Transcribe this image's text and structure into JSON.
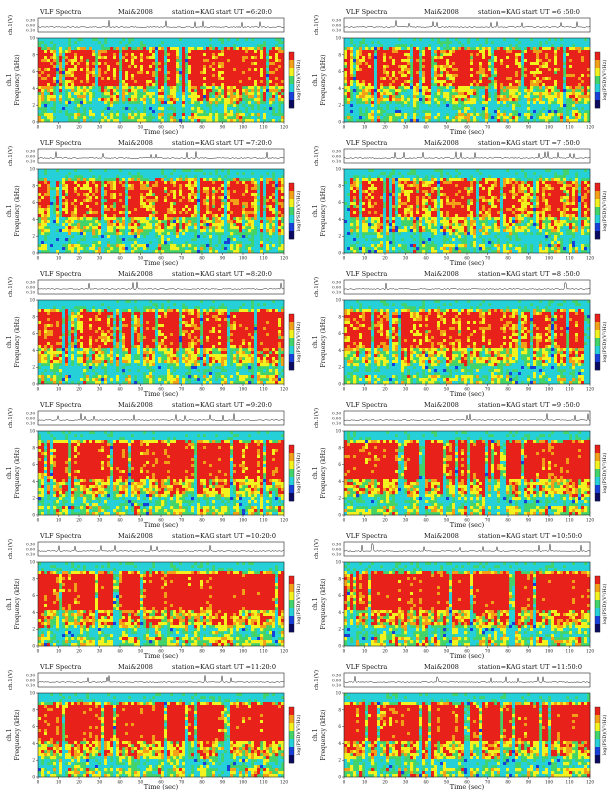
{
  "page": {
    "instrument": "VLF Spectra",
    "date": "Mai&2008",
    "station": "station=KAG",
    "start_prefix": "start  UT ="
  },
  "labels": {
    "top_ylabel": "ch.1(V)",
    "spec_ylabel_line1": "ch.1",
    "spec_ylabel_line2": "Frequency (kHz)",
    "xlabel": "Time (sec)",
    "colorbar_label": "log(PSD)(V²/Hz)"
  },
  "colors": {
    "grid_bg": "#1fd6b8",
    "cyan": "#25d0d8",
    "green": "#42d46a",
    "yellow": "#f2f21e",
    "orange": "#f2a018",
    "red": "#e8211b",
    "blue": "#1840d8",
    "navy": "#0a0a60"
  },
  "chart_data": [
    {
      "type": "heatmap",
      "start_ut": "6:20:0",
      "x_range": [
        0,
        120
      ],
      "top_ylim": [
        0.1,
        0.3
      ],
      "top_ticks": [
        "0.30",
        "0.00",
        "0.10"
      ],
      "freq_range_khz": [
        0,
        10
      ],
      "x_ticks": [
        0,
        10,
        20,
        30,
        40,
        50,
        60,
        70,
        80,
        90,
        100,
        110,
        120
      ],
      "y_ticks": [
        0,
        2,
        4,
        6,
        8,
        10
      ],
      "intensity": 0.45
    },
    {
      "type": "heatmap",
      "start_ut": "6 :50:0",
      "x_range": [
        0,
        120
      ],
      "top_ylim": [
        0.1,
        0.3
      ],
      "top_ticks": [
        "0.30",
        "0.00",
        "0.10"
      ],
      "freq_range_khz": [
        0,
        10
      ],
      "x_ticks": [
        0,
        10,
        20,
        30,
        40,
        50,
        60,
        70,
        80,
        90,
        100,
        110,
        120
      ],
      "y_ticks": [
        0,
        2,
        4,
        6,
        8,
        10
      ],
      "intensity": 0.42
    },
    {
      "type": "heatmap",
      "start_ut": "7:20:0",
      "x_range": [
        0,
        120
      ],
      "top_ylim": [
        0.1,
        0.3
      ],
      "top_ticks": [
        "0.30",
        "0.00",
        "0.10"
      ],
      "freq_range_khz": [
        0,
        10
      ],
      "x_ticks": [
        0,
        10,
        20,
        30,
        40,
        50,
        60,
        70,
        80,
        90,
        100,
        110,
        120
      ],
      "y_ticks": [
        0,
        2,
        4,
        6,
        8,
        10
      ],
      "intensity": 0.4
    },
    {
      "type": "heatmap",
      "start_ut": "7 :50:0",
      "x_range": [
        0,
        120
      ],
      "top_ylim": [
        0.1,
        0.3
      ],
      "top_ticks": [
        "0.30",
        "0.00",
        "0.10"
      ],
      "freq_range_khz": [
        0,
        10
      ],
      "x_ticks": [
        0,
        10,
        20,
        30,
        40,
        50,
        60,
        70,
        80,
        90,
        100,
        110,
        120
      ],
      "y_ticks": [
        0,
        2,
        4,
        6,
        8,
        10
      ],
      "intensity": 0.38
    },
    {
      "type": "heatmap",
      "start_ut": "8:20:0",
      "x_range": [
        0,
        120
      ],
      "top_ylim": [
        0.1,
        0.3
      ],
      "top_ticks": [
        "0.30",
        "0.00",
        "0.10"
      ],
      "freq_range_khz": [
        0,
        10
      ],
      "x_ticks": [
        0,
        10,
        20,
        30,
        40,
        50,
        60,
        70,
        80,
        90,
        100,
        110,
        120
      ],
      "y_ticks": [
        0,
        2,
        4,
        6,
        8,
        10
      ],
      "intensity": 0.45
    },
    {
      "type": "heatmap",
      "start_ut": "8 :50:0",
      "x_range": [
        0,
        120
      ],
      "top_ylim": [
        0.1,
        0.3
      ],
      "top_ticks": [
        "0.30",
        "0.00",
        "0.10"
      ],
      "freq_range_khz": [
        0,
        10
      ],
      "x_ticks": [
        0,
        10,
        20,
        30,
        40,
        50,
        60,
        70,
        80,
        90,
        100,
        110,
        120
      ],
      "y_ticks": [
        0,
        2,
        4,
        6,
        8,
        10
      ],
      "intensity": 0.46
    },
    {
      "type": "heatmap",
      "start_ut": "9:20:0",
      "x_range": [
        0,
        120
      ],
      "top_ylim": [
        0.1,
        0.3
      ],
      "top_ticks": [
        "0.30",
        "0.00",
        "0.10"
      ],
      "freq_range_khz": [
        0,
        10
      ],
      "x_ticks": [
        0,
        10,
        20,
        30,
        40,
        50,
        60,
        70,
        80,
        90,
        100,
        110,
        120
      ],
      "y_ticks": [
        0,
        2,
        4,
        6,
        8,
        10
      ],
      "intensity": 0.62
    },
    {
      "type": "heatmap",
      "start_ut": "9 :50:0",
      "x_range": [
        0,
        120
      ],
      "top_ylim": [
        0.1,
        0.3
      ],
      "top_ticks": [
        "0.30",
        "0.00",
        "0.10"
      ],
      "freq_range_khz": [
        0,
        10
      ],
      "x_ticks": [
        0,
        10,
        20,
        30,
        40,
        50,
        60,
        70,
        80,
        90,
        100,
        110,
        120
      ],
      "y_ticks": [
        0,
        2,
        4,
        6,
        8,
        10
      ],
      "intensity": 0.64
    },
    {
      "type": "heatmap",
      "start_ut": "10:20:0",
      "x_range": [
        0,
        120
      ],
      "top_ylim": [
        0.1,
        0.3
      ],
      "top_ticks": [
        "0.30",
        "0.00",
        "0.10"
      ],
      "freq_range_khz": [
        0,
        10
      ],
      "x_ticks": [
        0,
        10,
        20,
        30,
        40,
        50,
        60,
        70,
        80,
        90,
        100,
        110,
        120
      ],
      "y_ticks": [
        0,
        2,
        4,
        6,
        8,
        10
      ],
      "intensity": 0.72
    },
    {
      "type": "heatmap",
      "start_ut": "10:50:0",
      "x_range": [
        0,
        120
      ],
      "top_ylim": [
        0.1,
        0.3
      ],
      "top_ticks": [
        "0.30",
        "0.00",
        "0.10"
      ],
      "freq_range_khz": [
        0,
        10
      ],
      "x_ticks": [
        0,
        10,
        20,
        30,
        40,
        50,
        60,
        70,
        80,
        90,
        100,
        110,
        120
      ],
      "y_ticks": [
        0,
        2,
        4,
        6,
        8,
        10
      ],
      "intensity": 0.74
    },
    {
      "type": "heatmap",
      "start_ut": "11:20:0",
      "x_range": [
        0,
        120
      ],
      "top_ylim": [
        0.1,
        0.3
      ],
      "top_ticks": [
        "0.30",
        "0.00",
        "0.10"
      ],
      "freq_range_khz": [
        0,
        10
      ],
      "x_ticks": [
        0,
        10,
        20,
        30,
        40,
        50,
        60,
        70,
        80,
        90,
        100,
        110,
        120
      ],
      "y_ticks": [
        0,
        2,
        4,
        6,
        8,
        10
      ],
      "intensity": 0.7
    },
    {
      "type": "heatmap",
      "start_ut": "11:50:0",
      "x_range": [
        0,
        120
      ],
      "top_ylim": [
        0.1,
        0.3
      ],
      "top_ticks": [
        "0.30",
        "0.00",
        "0.10"
      ],
      "freq_range_khz": [
        0,
        10
      ],
      "x_ticks": [
        0,
        10,
        20,
        30,
        40,
        50,
        60,
        70,
        80,
        90,
        100,
        110,
        120
      ],
      "y_ticks": [
        0,
        2,
        4,
        6,
        8,
        10
      ],
      "intensity": 0.7
    }
  ]
}
